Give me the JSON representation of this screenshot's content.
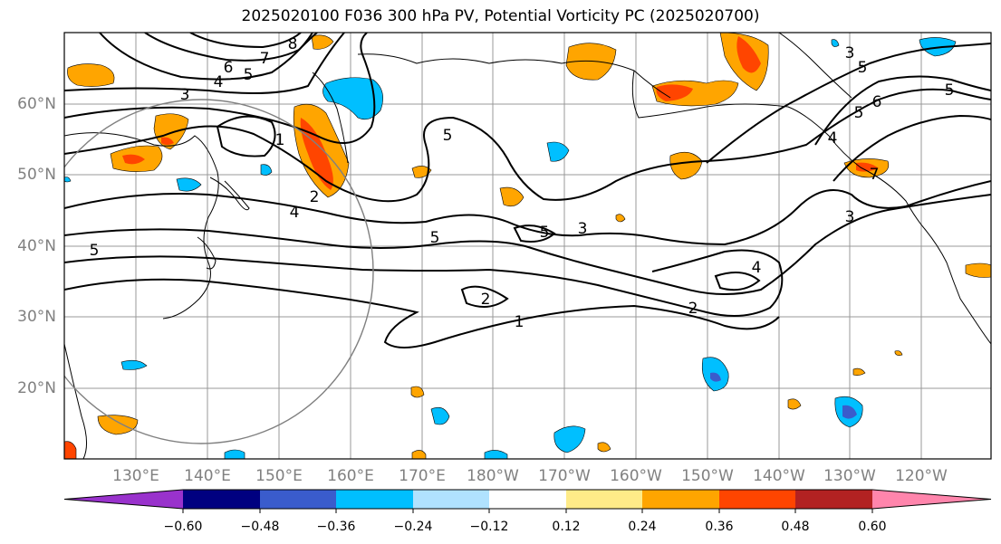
{
  "title": "2025020100 F036 300 hPa PV, Potential Vorticity PC (2025020700)",
  "map": {
    "lat_labels": [
      "60°N",
      "50°N",
      "40°N",
      "30°N",
      "20°N"
    ],
    "lon_labels": [
      "130°E",
      "140°E",
      "150°E",
      "160°E",
      "170°E",
      "180°W",
      "170°W",
      "160°W",
      "150°W",
      "140°W",
      "130°W",
      "120°W"
    ],
    "contour_labels": [
      "8",
      "7",
      "6",
      "5",
      "4",
      "3",
      "1",
      "2",
      "4",
      "5",
      "5",
      "5",
      "3",
      "4",
      "2",
      "1",
      "2",
      "5",
      "6",
      "5",
      "7",
      "4",
      "3",
      "5",
      "3",
      "5"
    ]
  },
  "colorbar": {
    "ticks": [
      "−0.60",
      "−0.48",
      "−0.36",
      "−0.24",
      "−0.12",
      "0.12",
      "0.24",
      "0.36",
      "0.48",
      "0.60"
    ],
    "colors": [
      "#9932cc",
      "#000080",
      "#3a5ccc",
      "#00bfff",
      "#b0e2ff",
      "#ffffff",
      "#ffeb88",
      "#ffa500",
      "#ff4500",
      "#b22222",
      "#ff85ac"
    ]
  }
}
